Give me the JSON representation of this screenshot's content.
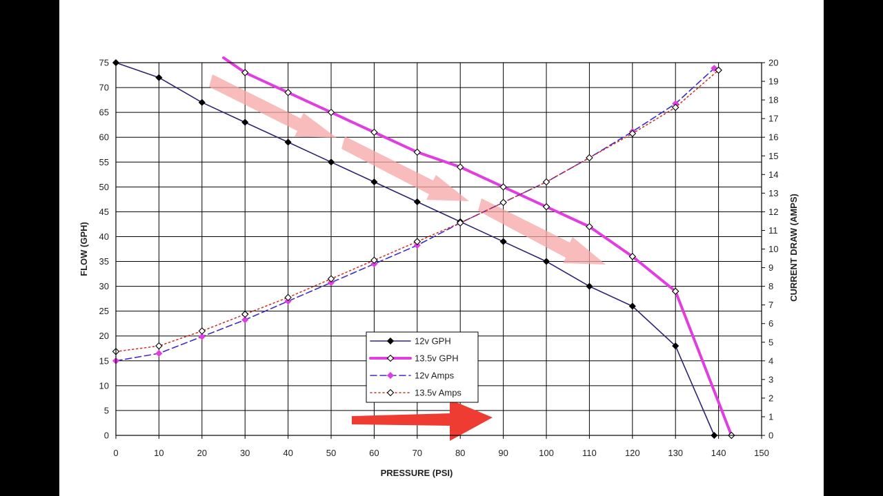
{
  "chart_data": {
    "type": "line",
    "xlabel": "PRESSURE (PSI)",
    "ylabel": "FLOW (GPH)",
    "y2label": "CURRENT DRAW (AMPS)",
    "xlim": [
      0,
      150
    ],
    "ylim": [
      0,
      75
    ],
    "y2lim": [
      0,
      20
    ],
    "xticks": [
      "0",
      "10",
      "20",
      "30",
      "40",
      "50",
      "60",
      "70",
      "80",
      "90",
      "100",
      "110",
      "120",
      "130",
      "140",
      "150"
    ],
    "yticks": [
      "0",
      "5",
      "10",
      "15",
      "20",
      "25",
      "30",
      "35",
      "40",
      "45",
      "50",
      "55",
      "60",
      "65",
      "70",
      "75"
    ],
    "y2ticks": [
      "0",
      "1",
      "2",
      "3",
      "4",
      "5",
      "6",
      "7",
      "8",
      "9",
      "10",
      "11",
      "12",
      "13",
      "14",
      "15",
      "16",
      "17",
      "18",
      "19",
      "20"
    ],
    "grid": true,
    "legend_position": "bottom-center",
    "series": [
      {
        "name": "12v GPH",
        "axis": "left",
        "color": "#2b2373",
        "style": "solid",
        "marker": "filled-diamond",
        "x": [
          0,
          10,
          20,
          30,
          40,
          50,
          60,
          70,
          80,
          90,
          100,
          110,
          120,
          130,
          139
        ],
        "y": [
          75,
          72,
          67,
          63,
          59,
          55,
          51,
          47,
          43,
          39,
          35,
          30,
          26,
          18,
          0
        ]
      },
      {
        "name": "13.5v GPH",
        "axis": "left",
        "color": "#e23de0",
        "style": "thick",
        "marker": "open-diamond",
        "x": [
          25,
          30,
          40,
          50,
          60,
          70,
          80,
          90,
          100,
          110,
          120,
          130,
          143
        ],
        "y": [
          76,
          73,
          69,
          65,
          61,
          57,
          54,
          50,
          46,
          42,
          36,
          29,
          0
        ]
      },
      {
        "name": "12v Amps",
        "axis": "right",
        "color": "#3a2ad1",
        "style": "dashed",
        "marker": "magenta-diamond",
        "x": [
          0,
          10,
          20,
          30,
          40,
          50,
          60,
          70,
          80,
          90,
          100,
          110,
          120,
          130,
          139
        ],
        "y": [
          4.0,
          4.4,
          5.3,
          6.2,
          7.2,
          8.2,
          9.2,
          10.2,
          11.4,
          12.5,
          13.6,
          14.9,
          16.3,
          17.8,
          19.7
        ]
      },
      {
        "name": "13.5v Amps",
        "axis": "right",
        "color": "#d0312d",
        "style": "dotted",
        "marker": "open-diamond",
        "x": [
          0,
          10,
          20,
          30,
          40,
          50,
          60,
          70,
          80,
          90,
          100,
          110,
          120,
          130,
          140
        ],
        "y": [
          4.5,
          4.8,
          5.6,
          6.5,
          7.4,
          8.4,
          9.4,
          10.4,
          11.4,
          12.5,
          13.6,
          14.9,
          16.2,
          17.6,
          19.6
        ]
      }
    ]
  }
}
